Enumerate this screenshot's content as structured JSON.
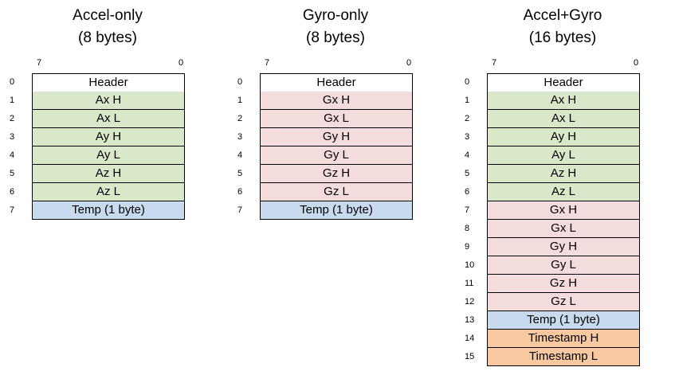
{
  "colors": {
    "header": "#ffffff",
    "accel": "#d9e8c8",
    "gyro": "#f3dcdb",
    "temp": "#c8dbee",
    "timestamp": "#f8c9a0",
    "border": "#000000"
  },
  "packets": [
    {
      "title": "Accel-only",
      "subtitle": "(8 bytes)",
      "bit_high": "7",
      "bit_low": "0",
      "rows": [
        {
          "index": "0",
          "label": "Header",
          "kind": "header"
        },
        {
          "index": "1",
          "label": "Ax H",
          "kind": "accel"
        },
        {
          "index": "2",
          "label": "Ax L",
          "kind": "accel"
        },
        {
          "index": "3",
          "label": "Ay H",
          "kind": "accel"
        },
        {
          "index": "4",
          "label": "Ay L",
          "kind": "accel"
        },
        {
          "index": "5",
          "label": "Az H",
          "kind": "accel"
        },
        {
          "index": "6",
          "label": "Az L",
          "kind": "accel"
        },
        {
          "index": "7",
          "label": "Temp (1 byte)",
          "kind": "temp"
        }
      ]
    },
    {
      "title": "Gyro-only",
      "subtitle": "(8 bytes)",
      "bit_high": "7",
      "bit_low": "0",
      "rows": [
        {
          "index": "0",
          "label": "Header",
          "kind": "header"
        },
        {
          "index": "1",
          "label": "Gx H",
          "kind": "gyro"
        },
        {
          "index": "2",
          "label": "Gx L",
          "kind": "gyro"
        },
        {
          "index": "3",
          "label": "Gy H",
          "kind": "gyro"
        },
        {
          "index": "4",
          "label": "Gy L",
          "kind": "gyro"
        },
        {
          "index": "5",
          "label": "Gz H",
          "kind": "gyro"
        },
        {
          "index": "6",
          "label": "Gz L",
          "kind": "gyro"
        },
        {
          "index": "7",
          "label": "Temp (1 byte)",
          "kind": "temp"
        }
      ]
    },
    {
      "title": "Accel+Gyro",
      "subtitle": "(16 bytes)",
      "bit_high": "7",
      "bit_low": "0",
      "rows": [
        {
          "index": "0",
          "label": "Header",
          "kind": "header"
        },
        {
          "index": "1",
          "label": "Ax H",
          "kind": "accel"
        },
        {
          "index": "2",
          "label": "Ax L",
          "kind": "accel"
        },
        {
          "index": "3",
          "label": "Ay H",
          "kind": "accel"
        },
        {
          "index": "4",
          "label": "Ay L",
          "kind": "accel"
        },
        {
          "index": "5",
          "label": "Az H",
          "kind": "accel"
        },
        {
          "index": "6",
          "label": "Az L",
          "kind": "accel"
        },
        {
          "index": "7",
          "label": "Gx H",
          "kind": "gyro"
        },
        {
          "index": "8",
          "label": "Gx L",
          "kind": "gyro"
        },
        {
          "index": "9",
          "label": "Gy H",
          "kind": "gyro"
        },
        {
          "index": "10",
          "label": "Gy L",
          "kind": "gyro"
        },
        {
          "index": "11",
          "label": "Gz H",
          "kind": "gyro"
        },
        {
          "index": "12",
          "label": "Gz L",
          "kind": "gyro"
        },
        {
          "index": "13",
          "label": "Temp (1 byte)",
          "kind": "temp"
        },
        {
          "index": "14",
          "label": "Timestamp H",
          "kind": "timestamp"
        },
        {
          "index": "15",
          "label": "Timestamp L",
          "kind": "timestamp"
        }
      ]
    }
  ]
}
